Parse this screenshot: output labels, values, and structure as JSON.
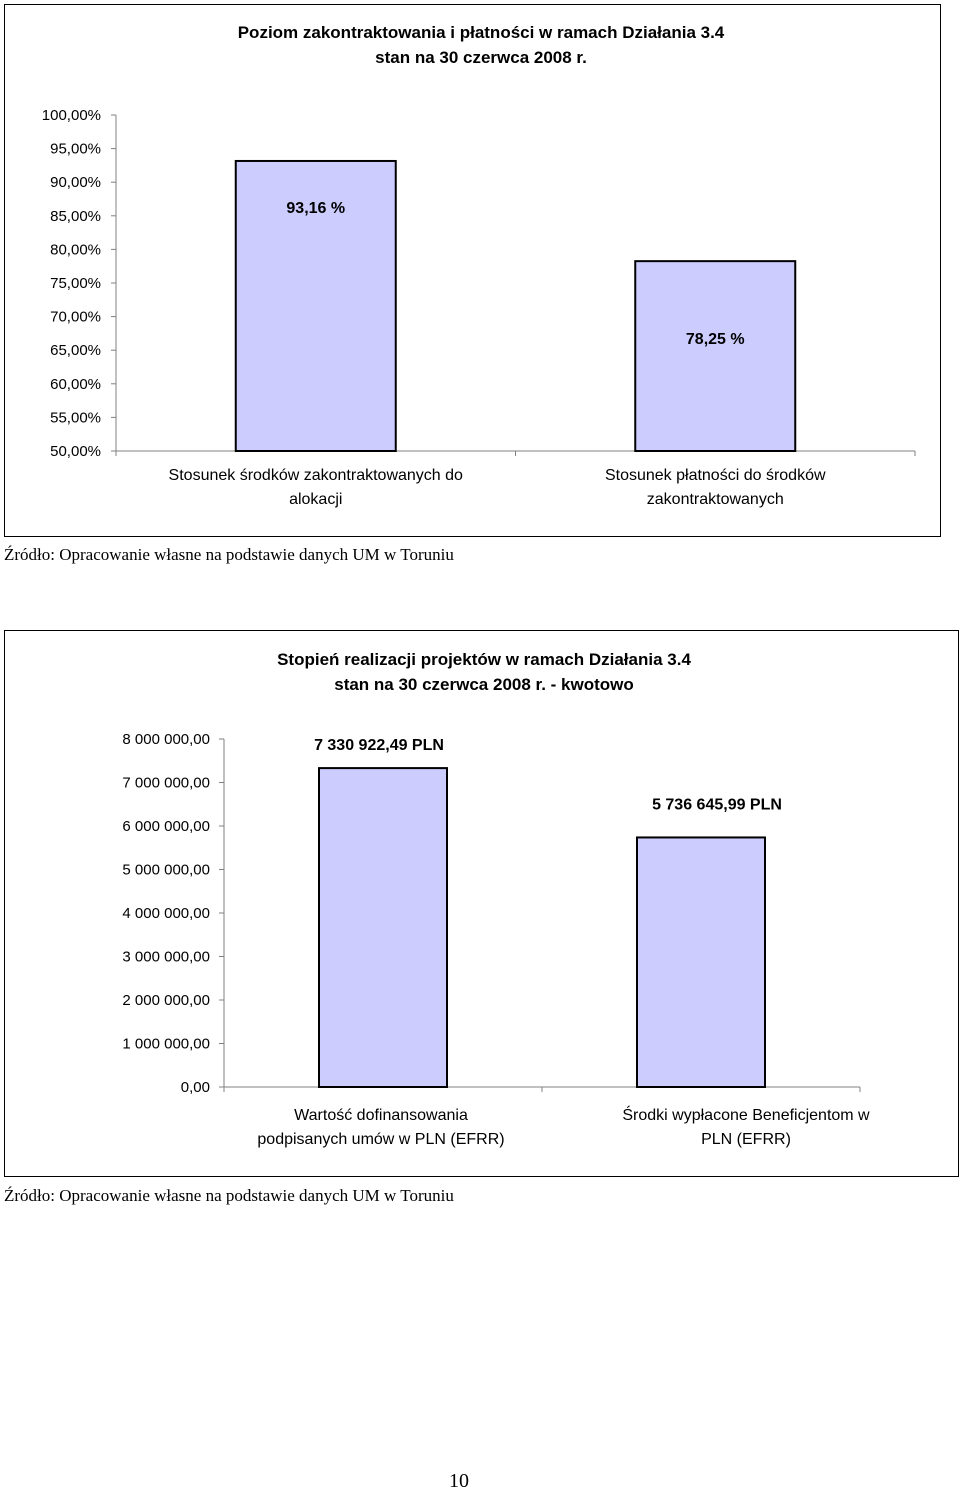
{
  "chart_data": [
    {
      "type": "bar",
      "title": "Poziom zakontraktowania i płatności w ramach Działania 3.4",
      "subtitle": "stan na 30 czerwca 2008 r.",
      "categories": [
        [
          "Stosunek środków zakontraktowanych do",
          "alokacji"
        ],
        [
          "Stosunek płatności do środków",
          "zakontraktowanych"
        ]
      ],
      "series": [
        {
          "values": [
            93.16,
            78.25
          ]
        }
      ],
      "data_labels": [
        "93,16 %",
        "78,25 %"
      ],
      "yticks": [
        "50,00%",
        "55,00%",
        "60,00%",
        "65,00%",
        "70,00%",
        "75,00%",
        "80,00%",
        "85,00%",
        "90,00%",
        "95,00%",
        "100,00%"
      ],
      "ylim": [
        50,
        100
      ],
      "xlabel": "",
      "ylabel": "",
      "grid": false,
      "legend": "none",
      "bar_color": "#ccccff",
      "source": "Źródło: Opracowanie własne na podstawie danych UM w Toruniu"
    },
    {
      "type": "bar",
      "title": "Stopień realizacji projektów w ramach Działania 3.4",
      "subtitle": "stan na 30 czerwca 2008 r. - kwotowo",
      "categories": [
        [
          "Wartość dofinansowania",
          "podpisanych umów w PLN (EFRR)"
        ],
        [
          "Środki wypłacone Beneficjentom w",
          "PLN (EFRR)"
        ]
      ],
      "series": [
        {
          "values": [
            7330922.49,
            5736645.99
          ]
        }
      ],
      "data_labels": [
        "7 330 922,49 PLN",
        "5 736 645,99 PLN"
      ],
      "yticks": [
        "0,00",
        "1 000 000,00",
        "2 000 000,00",
        "3 000 000,00",
        "4 000 000,00",
        "5 000 000,00",
        "6 000 000,00",
        "7 000 000,00",
        "8 000 000,00"
      ],
      "ylim": [
        0,
        8000000
      ],
      "xlabel": "",
      "ylabel": "",
      "grid": false,
      "legend": "none",
      "bar_color": "#ccccff",
      "source": "Źródło: Opracowanie własne na podstawie danych UM w Toruniu"
    }
  ],
  "page_number": "10"
}
